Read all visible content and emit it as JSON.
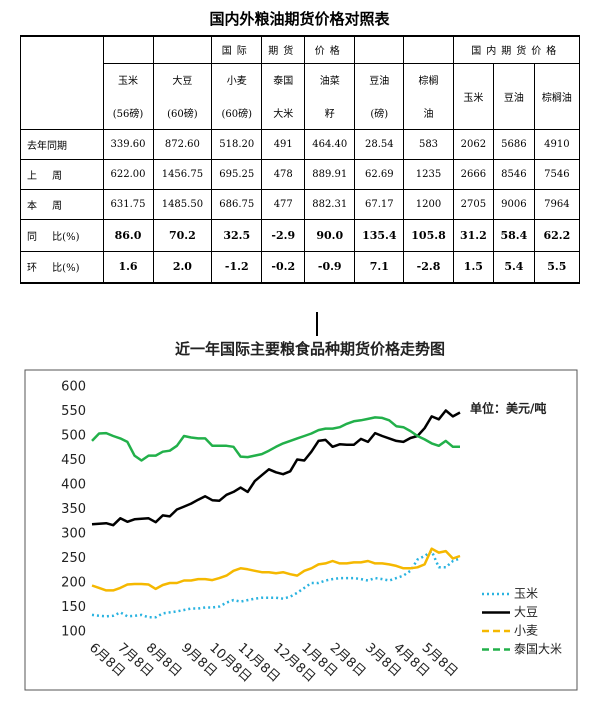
{
  "title": "国内外粮油期货价格对照表",
  "table": {
    "intl_header": [
      "国际",
      "期货",
      "价格"
    ],
    "domestic_header": "国内期货价格",
    "columns": [
      [
        "玉米",
        "(56磅)"
      ],
      [
        "大豆",
        "(60磅)"
      ],
      [
        "小麦",
        "(60磅)"
      ],
      [
        "泰国",
        "大米"
      ],
      [
        "油菜",
        "籽"
      ],
      [
        "豆油",
        "(磅)"
      ],
      [
        "棕榈",
        "油"
      ],
      [
        "玉米"
      ],
      [
        "豆油"
      ],
      [
        "棕榈油"
      ]
    ],
    "rows": [
      {
        "label": "去年同期",
        "cells": [
          "339.60",
          "872.60",
          "518.20",
          "491",
          "464.40",
          "28.54",
          "583",
          "2062",
          "5686",
          "4910"
        ]
      },
      {
        "label": "上 周",
        "cells": [
          "622.00",
          "1456.75",
          "695.25",
          "478",
          "889.91",
          "62.69",
          "1235",
          "2666",
          "8546",
          "7546"
        ]
      },
      {
        "label": "本 周",
        "cells": [
          "631.75",
          "1485.50",
          "686.75",
          "477",
          "882.31",
          "67.17",
          "1200",
          "2705",
          "9006",
          "7964"
        ]
      },
      {
        "label": "同 比(%)",
        "bold": true,
        "cells": [
          "86.0",
          "70.2",
          "32.5",
          "-2.9",
          "90.0",
          "135.4",
          "105.8",
          "31.2",
          "58.4",
          "62.2"
        ]
      },
      {
        "label": "环 比(%)",
        "bold": true,
        "cells": [
          "1.6",
          "2.0",
          "-1.2",
          "-0.2",
          "-0.9",
          "7.1",
          "-2.8",
          "1.5",
          "5.4",
          "5.5"
        ]
      }
    ]
  },
  "chart_data": {
    "type": "line",
    "title": "近一年国际主要粮食品种期货价格走势图",
    "annotation": "单位：美元/吨",
    "categories": [
      null,
      "6月8日",
      null,
      null,
      null,
      "7月8日",
      null,
      null,
      null,
      "8月8日",
      null,
      null,
      null,
      null,
      "9月8日",
      null,
      null,
      null,
      "10月8日",
      null,
      null,
      null,
      "11月8日",
      null,
      null,
      null,
      null,
      "12月8日",
      null,
      null,
      null,
      "1月8日",
      null,
      null,
      null,
      "2月8日",
      null,
      null,
      null,
      null,
      "3月8日",
      null,
      null,
      null,
      "4月8日",
      null,
      null,
      null,
      "5月8日",
      null,
      null,
      null,
      null
    ],
    "ylim": [
      100,
      600
    ],
    "yticks": [
      100,
      150,
      200,
      250,
      300,
      350,
      400,
      450,
      500,
      550,
      600
    ],
    "legend": "right",
    "series": [
      {
        "name": "玉米",
        "color": "#2ab3e0",
        "style": "dotted",
        "values": [
          135,
          133,
          132,
          133,
          140,
          132,
          133,
          135,
          130,
          130,
          138,
          140,
          142,
          145,
          148,
          148,
          150,
          150,
          152,
          160,
          165,
          162,
          165,
          168,
          170,
          170,
          170,
          168,
          172,
          180,
          190,
          200,
          200,
          205,
          208,
          210,
          210,
          210,
          208,
          205,
          210,
          208,
          205,
          210,
          215,
          225,
          248,
          255,
          265,
          232,
          232,
          245,
          250
        ]
      },
      {
        "name": "大豆",
        "color": "#000000",
        "style": "solid",
        "values": [
          320,
          321,
          322,
          318,
          332,
          325,
          330,
          331,
          332,
          324,
          338,
          336,
          350,
          356,
          362,
          370,
          377,
          369,
          368,
          380,
          386,
          395,
          386,
          408,
          420,
          432,
          426,
          422,
          428,
          452,
          450,
          468,
          490,
          492,
          478,
          483,
          482,
          482,
          494,
          488,
          506,
          500,
          495,
          490,
          488,
          496,
          500,
          516,
          540,
          534,
          552,
          540,
          548
        ]
      },
      {
        "name": "小麦",
        "color": "#f5b800",
        "style": "dashed",
        "values": [
          195,
          190,
          185,
          185,
          190,
          197,
          198,
          198,
          197,
          188,
          196,
          200,
          200,
          205,
          205,
          208,
          208,
          206,
          210,
          215,
          225,
          230,
          228,
          225,
          222,
          222,
          220,
          222,
          218,
          215,
          225,
          230,
          238,
          240,
          245,
          240,
          240,
          242,
          242,
          245,
          240,
          240,
          238,
          235,
          230,
          230,
          232,
          238,
          270,
          262,
          265,
          250,
          255
        ]
      },
      {
        "name": "泰国大米",
        "color": "#22b04a",
        "style": "dashed",
        "values": [
          490,
          505,
          506,
          500,
          495,
          488,
          460,
          450,
          460,
          460,
          468,
          470,
          480,
          500,
          497,
          495,
          495,
          480,
          480,
          480,
          478,
          458,
          457,
          460,
          463,
          470,
          478,
          485,
          490,
          495,
          500,
          505,
          512,
          515,
          515,
          518,
          525,
          530,
          532,
          535,
          538,
          537,
          532,
          520,
          518,
          510,
          500,
          493,
          485,
          480,
          490,
          478,
          478
        ]
      }
    ]
  }
}
